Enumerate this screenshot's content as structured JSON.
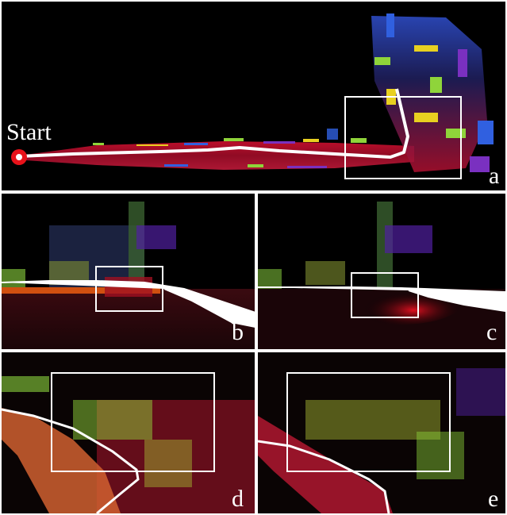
{
  "figure": {
    "panels": {
      "a": {
        "label": "a",
        "start_label": "Start"
      },
      "b": {
        "label": "b"
      },
      "c": {
        "label": "c"
      },
      "d": {
        "label": "d"
      },
      "e": {
        "label": "e"
      }
    },
    "colors": {
      "background": "#000000",
      "separator": "#ffffff",
      "trajectory": "#ffffff",
      "box": "#ffffff",
      "start_marker": "#e8121a",
      "floor": "#c4102a",
      "accent_green": "#8fd43a",
      "accent_yellow": "#e8d020",
      "accent_blue": "#3060e0",
      "accent_purple": "#7a30c0"
    }
  }
}
